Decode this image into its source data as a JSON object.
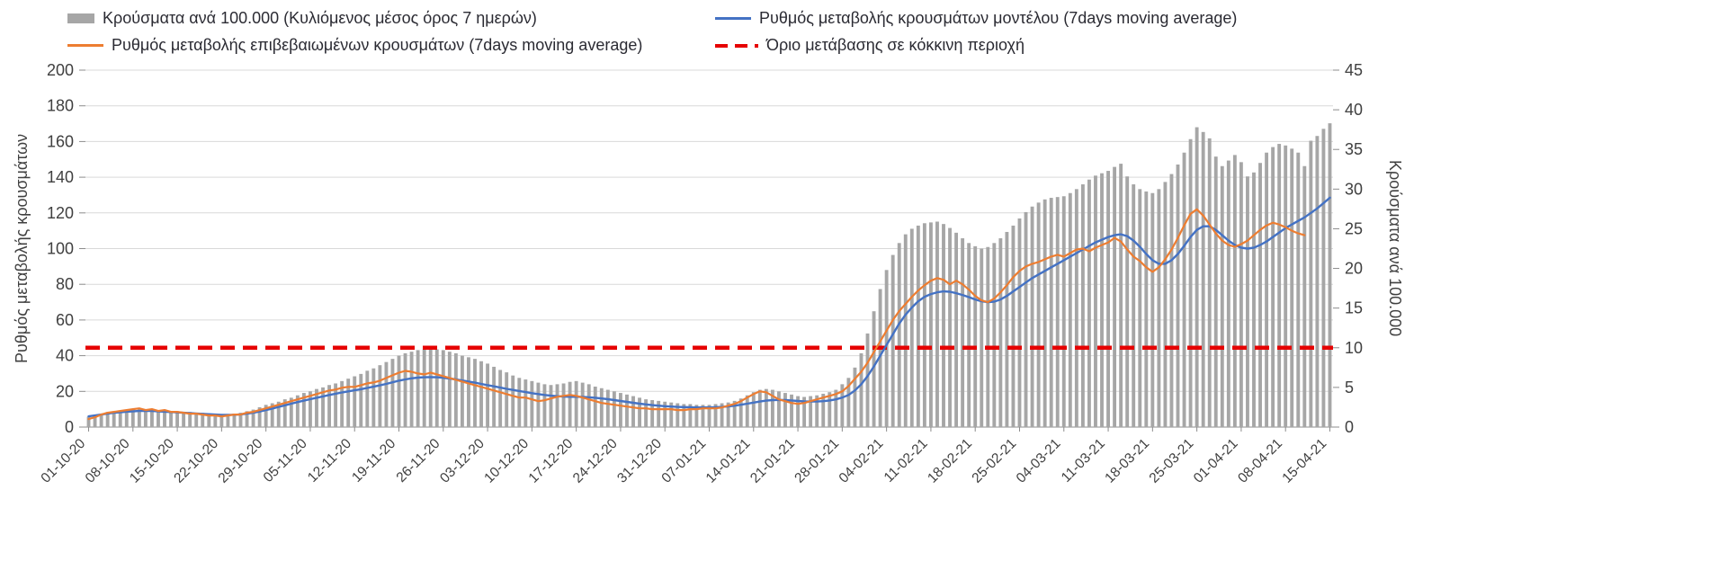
{
  "legend": {
    "items": [
      {
        "id": "bars",
        "label": "Κρούσματα ανά 100.000 (Κυλιόμενος μέσος όρος 7 ημερών)",
        "swatch": "bar",
        "color": "#A6A6A6"
      },
      {
        "id": "model",
        "label": "Ρυθμός μεταβολής κρουσμάτων μοντέλου (7days moving average)",
        "swatch": "line",
        "color": "#4472C4"
      },
      {
        "id": "confirmed",
        "label": "Ρυθμός μεταβολής επιβεβαιωμένων κρουσμάτων (7days moving average)",
        "swatch": "dash-line",
        "color": "#ED7D31"
      },
      {
        "id": "threshold",
        "label": "Όριο μετάβασης σε κόκκινη περιοχή",
        "swatch": "dash",
        "color": "#E60000"
      }
    ]
  },
  "chart_data": {
    "type": "bar",
    "subtype": "combo-bar-line-dual-axis",
    "title": "",
    "grid": "horizontal",
    "legend_position": "top",
    "left_axis": {
      "label": "Ρυθμός μεταβολής κρουσμάτων",
      "min": 0,
      "max": 200,
      "step": 20
    },
    "right_axis": {
      "label": "Κρούσματα ανά 100.000",
      "min": 0,
      "max": 45,
      "step": 5
    },
    "x_ticks": [
      "01-10-20",
      "08-10-20",
      "15-10-20",
      "22-10-20",
      "29-10-20",
      "05-11-20",
      "12-11-20",
      "19-11-20",
      "26-11-20",
      "03-12-20",
      "10-12-20",
      "17-12-20",
      "24-12-20",
      "31-12-20",
      "07-01-21",
      "14-01-21",
      "21-01-21",
      "28-01-21",
      "04-02-21",
      "11-02-21",
      "18-02-21",
      "25-02-21",
      "04-03-21",
      "11-03-21",
      "18-03-21",
      "25-03-21",
      "01-04-21",
      "08-04-21",
      "15-04-21"
    ],
    "days_per_tick": 7,
    "threshold": {
      "label": "Όριο μετάβασης σε κόκκινη περιοχή",
      "value": 10,
      "axis": "right",
      "color": "#E60000"
    },
    "series": [
      {
        "id": "cases_per_100k",
        "name": "Κρούσματα ανά 100.000 (Κυλιόμενος μέσος όρος 7 ημερών)",
        "type": "bar",
        "axis": "right",
        "color": "#A6A6A6",
        "values": [
          1.3,
          1.5,
          1.7,
          1.9,
          2.0,
          2.1,
          2.2,
          2.2,
          2.3,
          2.2,
          2.2,
          2.1,
          2.1,
          2.0,
          2.0,
          1.9,
          1.9,
          1.8,
          1.8,
          1.7,
          1.7,
          1.6,
          1.6,
          1.7,
          1.8,
          2.0,
          2.2,
          2.5,
          2.8,
          3.0,
          3.2,
          3.5,
          3.7,
          4.0,
          4.3,
          4.5,
          4.8,
          5.0,
          5.3,
          5.5,
          5.8,
          6.1,
          6.4,
          6.7,
          7.1,
          7.4,
          7.8,
          8.2,
          8.6,
          9.0,
          9.3,
          9.5,
          9.7,
          9.8,
          9.9,
          9.8,
          9.7,
          9.5,
          9.3,
          9.0,
          8.8,
          8.6,
          8.3,
          8.0,
          7.6,
          7.2,
          6.9,
          6.5,
          6.2,
          6.0,
          5.8,
          5.6,
          5.4,
          5.3,
          5.4,
          5.5,
          5.7,
          5.8,
          5.6,
          5.4,
          5.1,
          4.9,
          4.7,
          4.5,
          4.3,
          4.1,
          3.9,
          3.7,
          3.5,
          3.4,
          3.3,
          3.2,
          3.1,
          3.0,
          2.9,
          2.9,
          2.8,
          2.8,
          2.8,
          2.9,
          3.0,
          3.1,
          3.3,
          3.6,
          4.0,
          4.4,
          4.7,
          4.8,
          4.7,
          4.5,
          4.3,
          4.1,
          3.9,
          3.8,
          3.9,
          4.0,
          4.2,
          4.4,
          4.7,
          5.4,
          6.2,
          7.5,
          9.3,
          11.8,
          14.6,
          17.4,
          19.8,
          21.7,
          23.2,
          24.3,
          25.0,
          25.4,
          25.7,
          25.8,
          25.9,
          25.6,
          25.1,
          24.5,
          23.8,
          23.2,
          22.8,
          22.5,
          22.7,
          23.2,
          23.8,
          24.6,
          25.4,
          26.3,
          27.1,
          27.8,
          28.3,
          28.7,
          28.9,
          29.0,
          29.1,
          29.5,
          30.0,
          30.6,
          31.2,
          31.7,
          32.0,
          32.3,
          32.8,
          33.2,
          31.6,
          30.6,
          30.0,
          29.7,
          29.5,
          30.0,
          30.9,
          31.9,
          33.1,
          34.6,
          36.3,
          37.8,
          37.2,
          36.4,
          34.1,
          32.9,
          33.6,
          34.3,
          33.4,
          31.6,
          32.1,
          33.3,
          34.6,
          35.3,
          35.7,
          35.5,
          35.1,
          34.6,
          32.9,
          36.1,
          36.7,
          37.6,
          38.3
        ]
      },
      {
        "id": "model_rate",
        "name": "Ρυθμός μεταβολής κρουσμάτων μοντέλου (7days moving average)",
        "type": "line",
        "axis": "left",
        "color": "#4472C4",
        "values": [
          6,
          6.5,
          7,
          7.5,
          8,
          8.3,
          8.6,
          8.8,
          9,
          9,
          9,
          8.8,
          8.6,
          8.4,
          8.2,
          8,
          7.8,
          7.6,
          7.4,
          7.2,
          7,
          6.8,
          6.8,
          6.9,
          7.1,
          7.5,
          8,
          8.7,
          9.5,
          10.4,
          11.3,
          12.2,
          13.1,
          14,
          14.8,
          15.6,
          16.4,
          17.2,
          18,
          18.7,
          19.4,
          20,
          20.6,
          21.2,
          21.9,
          22.6,
          23.4,
          24.2,
          25.1,
          26,
          26.7,
          27.3,
          27.7,
          27.9,
          28,
          27.9,
          27.6,
          27.2,
          26.7,
          26.1,
          25.5,
          24.9,
          24.2,
          23.5,
          22.8,
          22.1,
          21.4,
          20.8,
          20.2,
          19.6,
          19,
          18.5,
          18,
          17.6,
          17.3,
          17.1,
          17,
          17,
          16.9,
          16.7,
          16.4,
          16,
          15.6,
          15.1,
          14.6,
          14.1,
          13.6,
          13.1,
          12.7,
          12.3,
          12,
          11.7,
          11.5,
          11.3,
          11.2,
          11.1,
          11,
          11,
          11,
          11.1,
          11.3,
          11.6,
          12,
          12.5,
          13.1,
          13.7,
          14.3,
          14.8,
          15.1,
          15.2,
          15.1,
          14.9,
          14.6,
          14.4,
          14.3,
          14.3,
          14.5,
          14.9,
          15.5,
          16.5,
          18,
          20.5,
          24,
          28.5,
          34,
          40,
          46,
          52,
          58,
          63,
          67,
          70.5,
          73,
          74.5,
          75.5,
          76,
          75.8,
          75,
          74,
          72.8,
          71.5,
          70.5,
          70,
          70.3,
          71.5,
          73.5,
          76,
          78.5,
          81,
          83.5,
          85.5,
          87.5,
          89.5,
          91.5,
          93.5,
          95.5,
          97.5,
          99.5,
          101.5,
          103.5,
          105,
          106.5,
          107.5,
          108,
          107,
          104.5,
          101,
          97,
          93.5,
          91.5,
          91.5,
          93.5,
          97,
          101.5,
          106.5,
          110.5,
          112.5,
          112.5,
          110.5,
          107.5,
          104.5,
          102,
          100.5,
          100,
          100.5,
          102,
          104,
          106.5,
          109,
          111.5,
          113.5,
          115.5,
          117.5,
          120,
          122.5,
          125.5,
          128.5
        ]
      },
      {
        "id": "confirmed_rate",
        "name": "Ρυθμός μεταβολής επιβεβαιωμένων κρουσμάτων (7days moving average)",
        "type": "line",
        "axis": "left",
        "color": "#ED7D31",
        "values": [
          4.5,
          5.5,
          7,
          8,
          8.5,
          9,
          9.5,
          10,
          10.5,
          9.5,
          10,
          9,
          9.5,
          8.5,
          8.5,
          8,
          7.5,
          7.5,
          7,
          6.5,
          6.5,
          6,
          6.5,
          7,
          7,
          8,
          8.5,
          9.5,
          10.5,
          11.5,
          12.5,
          13.5,
          14.5,
          15.5,
          16.5,
          17.5,
          18.5,
          19.5,
          20.5,
          21,
          22,
          22.5,
          22.5,
          23.5,
          24.5,
          25,
          26,
          27.5,
          29,
          30.5,
          31.5,
          31,
          30,
          29.5,
          30.5,
          29.5,
          28.5,
          27.5,
          26.5,
          25.5,
          24.5,
          23.5,
          22.5,
          21.5,
          20.5,
          19.5,
          18.5,
          17.5,
          16.5,
          16.5,
          15.5,
          14.5,
          15,
          16,
          17,
          17.5,
          18,
          17.5,
          16.5,
          15.5,
          14.5,
          13.5,
          13,
          12.5,
          12,
          11.5,
          11,
          10.5,
          10.5,
          10,
          10,
          10,
          10,
          9.5,
          9.5,
          10,
          10,
          10.5,
          10.5,
          10.5,
          11,
          12,
          13,
          14.5,
          16.5,
          18.5,
          20,
          19.5,
          17.5,
          15.5,
          14.5,
          13.5,
          13,
          13.5,
          14.5,
          15.5,
          16.5,
          17.5,
          18.5,
          20,
          23,
          27,
          31,
          36,
          42,
          48,
          54,
          60,
          65,
          69,
          73,
          76.5,
          79.5,
          82,
          83.5,
          82.5,
          80,
          82,
          80,
          77,
          73.5,
          71,
          70,
          72,
          75.5,
          79.5,
          84,
          87.5,
          90,
          91.5,
          92.5,
          94,
          95.5,
          96.5,
          95.5,
          97.5,
          99.5,
          100,
          98.5,
          100.5,
          102,
          103.5,
          106,
          104,
          99.5,
          95.5,
          93,
          89.5,
          87,
          89.5,
          94,
          99.5,
          106,
          113,
          119.5,
          122,
          118.5,
          113.5,
          108.5,
          104.5,
          102,
          101,
          102.5,
          104.5,
          107.5,
          110.5,
          113,
          114.5,
          113.5,
          112,
          110,
          108.5,
          107.5,
          null,
          null,
          null,
          null
        ]
      }
    ]
  }
}
